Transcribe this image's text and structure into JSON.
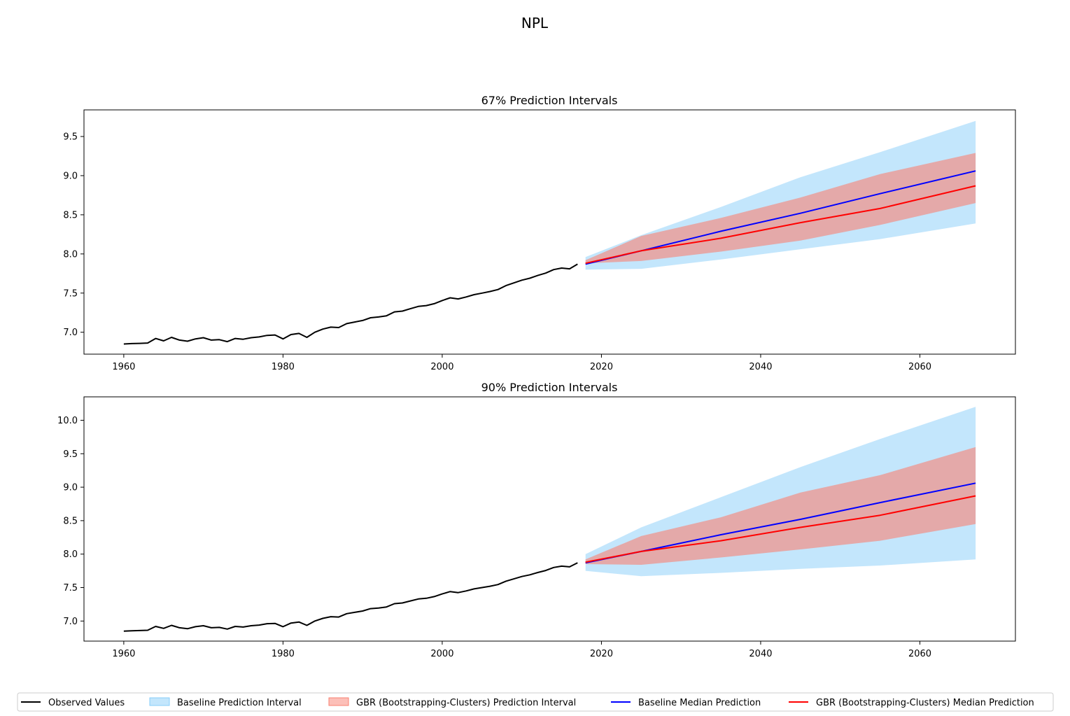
{
  "figure_title": "NPL",
  "legend": [
    {
      "label": "Observed Values",
      "kind": "line",
      "color": "#000000"
    },
    {
      "label": "Baseline Prediction Interval",
      "kind": "patch",
      "color": "#87CEFA"
    },
    {
      "label": "GBR (Bootstrapping-Clusters) Prediction Interval",
      "kind": "patch",
      "color": "#FA8072"
    },
    {
      "label": "Baseline Median Prediction",
      "kind": "line",
      "color": "#0000FF"
    },
    {
      "label": "GBR (Bootstrapping-Clusters) Median Prediction",
      "kind": "line",
      "color": "#FF0000"
    }
  ],
  "chart_data": [
    {
      "type": "line",
      "title": "67% Prediction Intervals",
      "xlabel": "",
      "ylabel": "",
      "xlim": [
        1955,
        2072
      ],
      "ylim": [
        6.72,
        9.84
      ],
      "xticks": [
        1960,
        1980,
        2000,
        2020,
        2040,
        2060
      ],
      "yticks": [
        7.0,
        7.5,
        8.0,
        8.5,
        9.0,
        9.5
      ],
      "legend": "bottom (shared)",
      "grid": false,
      "observed": {
        "name": "Observed Values",
        "x": [
          1960,
          1961,
          1962,
          1963,
          1964,
          1965,
          1966,
          1967,
          1968,
          1969,
          1970,
          1971,
          1972,
          1973,
          1974,
          1975,
          1976,
          1977,
          1978,
          1979,
          1980,
          1981,
          1982,
          1983,
          1984,
          1985,
          1986,
          1987,
          1988,
          1989,
          1990,
          1991,
          1992,
          1993,
          1994,
          1995,
          1996,
          1997,
          1998,
          1999,
          2000,
          2001,
          2002,
          2003,
          2004,
          2005,
          2006,
          2007,
          2008,
          2009,
          2010,
          2011,
          2012,
          2013,
          2014,
          2015,
          2016,
          2017
        ],
        "y": [
          6.85,
          6.855,
          6.858,
          6.862,
          6.92,
          6.89,
          6.935,
          6.9,
          6.885,
          6.915,
          6.93,
          6.9,
          6.905,
          6.88,
          6.92,
          6.91,
          6.93,
          6.94,
          6.96,
          6.965,
          6.915,
          6.97,
          6.985,
          6.935,
          7.0,
          7.04,
          7.065,
          7.06,
          7.11,
          7.13,
          7.15,
          7.185,
          7.195,
          7.21,
          7.26,
          7.27,
          7.3,
          7.33,
          7.34,
          7.365,
          7.405,
          7.44,
          7.425,
          7.45,
          7.48,
          7.5,
          7.52,
          7.545,
          7.595,
          7.63,
          7.665,
          7.69,
          7.725,
          7.755,
          7.8,
          7.82,
          7.81,
          7.87
        ]
      },
      "baseline_interval": {
        "name": "Baseline Prediction Interval",
        "x": [
          2018,
          2025,
          2035,
          2045,
          2055,
          2067
        ],
        "lower": [
          7.8,
          7.81,
          7.93,
          8.06,
          8.19,
          8.39
        ],
        "upper": [
          7.96,
          8.24,
          8.6,
          8.98,
          9.3,
          9.7
        ]
      },
      "gbr_interval": {
        "name": "GBR (Bootstrapping-Clusters) Prediction Interval",
        "x": [
          2018,
          2025,
          2035,
          2045,
          2055,
          2067
        ],
        "lower": [
          7.88,
          7.91,
          8.03,
          8.17,
          8.37,
          8.65
        ],
        "upper": [
          7.92,
          8.23,
          8.46,
          8.72,
          9.02,
          9.29
        ]
      },
      "baseline_median": {
        "name": "Baseline Median Prediction",
        "x": [
          2018,
          2025,
          2035,
          2045,
          2055,
          2067
        ],
        "y": [
          7.87,
          8.04,
          8.29,
          8.52,
          8.77,
          9.06
        ]
      },
      "gbr_median": {
        "name": "GBR (Bootstrapping-Clusters) Median Prediction",
        "x": [
          2018,
          2025,
          2035,
          2045,
          2055,
          2067
        ],
        "y": [
          7.88,
          8.04,
          8.2,
          8.4,
          8.58,
          8.87
        ]
      }
    },
    {
      "type": "line",
      "title": "90% Prediction Intervals",
      "xlabel": "",
      "ylabel": "",
      "xlim": [
        1955,
        2072
      ],
      "ylim": [
        6.7,
        10.35
      ],
      "xticks": [
        1960,
        1980,
        2000,
        2020,
        2040,
        2060
      ],
      "yticks": [
        7.0,
        7.5,
        8.0,
        8.5,
        9.0,
        9.5,
        10.0
      ],
      "legend": "bottom (shared)",
      "grid": false,
      "observed": {
        "name": "Observed Values",
        "x": [
          1960,
          1961,
          1962,
          1963,
          1964,
          1965,
          1966,
          1967,
          1968,
          1969,
          1970,
          1971,
          1972,
          1973,
          1974,
          1975,
          1976,
          1977,
          1978,
          1979,
          1980,
          1981,
          1982,
          1983,
          1984,
          1985,
          1986,
          1987,
          1988,
          1989,
          1990,
          1991,
          1992,
          1993,
          1994,
          1995,
          1996,
          1997,
          1998,
          1999,
          2000,
          2001,
          2002,
          2003,
          2004,
          2005,
          2006,
          2007,
          2008,
          2009,
          2010,
          2011,
          2012,
          2013,
          2014,
          2015,
          2016,
          2017
        ],
        "y": [
          6.85,
          6.855,
          6.858,
          6.862,
          6.92,
          6.89,
          6.935,
          6.9,
          6.885,
          6.915,
          6.93,
          6.9,
          6.905,
          6.88,
          6.92,
          6.91,
          6.93,
          6.94,
          6.96,
          6.965,
          6.915,
          6.97,
          6.985,
          6.935,
          7.0,
          7.04,
          7.065,
          7.06,
          7.11,
          7.13,
          7.15,
          7.185,
          7.195,
          7.21,
          7.26,
          7.27,
          7.3,
          7.33,
          7.34,
          7.365,
          7.405,
          7.44,
          7.425,
          7.45,
          7.48,
          7.5,
          7.52,
          7.545,
          7.595,
          7.63,
          7.665,
          7.69,
          7.725,
          7.755,
          7.8,
          7.82,
          7.81,
          7.87
        ]
      },
      "baseline_interval": {
        "name": "Baseline Prediction Interval",
        "x": [
          2018,
          2025,
          2035,
          2045,
          2055,
          2067
        ],
        "lower": [
          7.75,
          7.67,
          7.72,
          7.78,
          7.83,
          7.92
        ],
        "upper": [
          8.0,
          8.4,
          8.85,
          9.3,
          9.72,
          10.2
        ]
      },
      "gbr_interval": {
        "name": "GBR (Bootstrapping-Clusters) Prediction Interval",
        "x": [
          2018,
          2025,
          2035,
          2045,
          2055,
          2067
        ],
        "lower": [
          7.85,
          7.84,
          7.95,
          8.07,
          8.2,
          8.45
        ],
        "upper": [
          7.92,
          8.27,
          8.55,
          8.92,
          9.18,
          9.6
        ]
      },
      "baseline_median": {
        "name": "Baseline Median Prediction",
        "x": [
          2018,
          2025,
          2035,
          2045,
          2055,
          2067
        ],
        "y": [
          7.87,
          8.04,
          8.29,
          8.52,
          8.77,
          9.06
        ]
      },
      "gbr_median": {
        "name": "GBR (Bootstrapping-Clusters) Median Prediction",
        "x": [
          2018,
          2025,
          2035,
          2045,
          2055,
          2067
        ],
        "y": [
          7.88,
          8.04,
          8.2,
          8.4,
          8.58,
          8.87
        ]
      }
    }
  ]
}
